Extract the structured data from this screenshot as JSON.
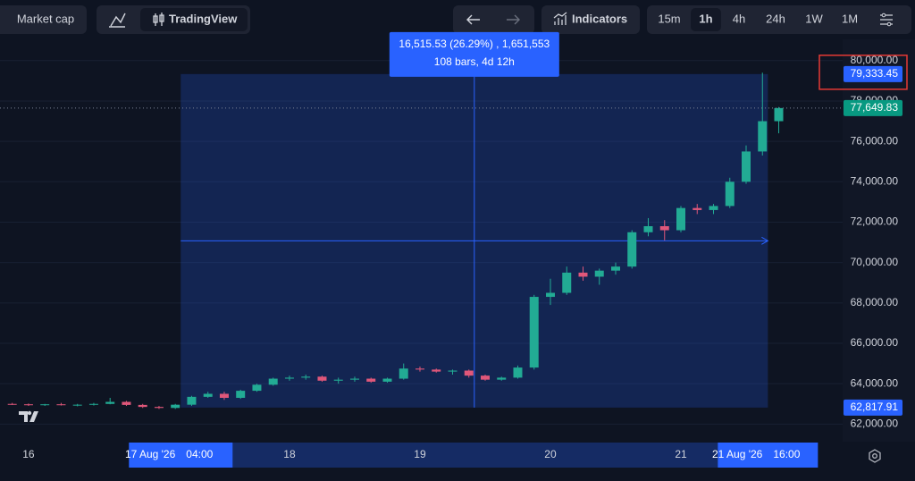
{
  "toolbar": {
    "market_cap": "Market cap",
    "tradingview": "TradingView",
    "indicators": "Indicators",
    "intervals": [
      "15m",
      "1h",
      "4h",
      "24h",
      "1W",
      "1M"
    ],
    "active_interval_index": 1
  },
  "chart_data": {
    "type": "candlestick",
    "x": [
      "2026-08-15 21:00",
      "2026-08-16 00:00",
      "2026-08-16 03:00",
      "2026-08-16 06:00",
      "2026-08-16 09:00",
      "2026-08-16 12:00",
      "2026-08-16 15:00",
      "2026-08-16 18:00",
      "2026-08-16 21:00",
      "2026-08-17 00:00",
      "2026-08-17 03:00",
      "2026-08-17 06:00",
      "2026-08-17 09:00",
      "2026-08-17 12:00",
      "2026-08-17 15:00",
      "2026-08-17 18:00",
      "2026-08-17 21:00",
      "2026-08-18 00:00",
      "2026-08-18 03:00",
      "2026-08-18 06:00",
      "2026-08-18 09:00",
      "2026-08-18 12:00",
      "2026-08-18 15:00",
      "2026-08-18 18:00",
      "2026-08-18 21:00",
      "2026-08-19 00:00",
      "2026-08-19 03:00",
      "2026-08-19 06:00",
      "2026-08-19 09:00",
      "2026-08-19 12:00",
      "2026-08-19 15:00",
      "2026-08-19 18:00",
      "2026-08-19 21:00",
      "2026-08-20 00:00",
      "2026-08-20 03:00",
      "2026-08-20 06:00",
      "2026-08-20 09:00",
      "2026-08-20 12:00",
      "2026-08-20 15:00",
      "2026-08-20 18:00",
      "2026-08-20 21:00",
      "2026-08-21 00:00",
      "2026-08-21 03:00",
      "2026-08-21 06:00",
      "2026-08-21 09:00",
      "2026-08-21 12:00",
      "2026-08-21 15:00",
      "2026-08-21 18:00"
    ],
    "open": [
      63000,
      62980,
      62950,
      62980,
      62940,
      62960,
      63000,
      63100,
      62950,
      62850,
      62800,
      62960,
      63350,
      63500,
      63300,
      63650,
      63950,
      64250,
      64300,
      64350,
      64150,
      64200,
      64250,
      64100,
      64250,
      64750,
      64700,
      64600,
      64650,
      64400,
      64200,
      64300,
      64800,
      68300,
      68500,
      69500,
      69300,
      69600,
      69800,
      71500,
      71800,
      71600,
      72700,
      72600,
      72800,
      74000,
      75500,
      77000
    ],
    "high": [
      63050,
      63020,
      63000,
      63050,
      63000,
      63050,
      63300,
      63150,
      63000,
      62900,
      63000,
      63400,
      63600,
      63600,
      63700,
      64000,
      64300,
      64400,
      64450,
      64400,
      64300,
      64350,
      64300,
      64300,
      65000,
      64850,
      64750,
      64700,
      64700,
      64450,
      64350,
      64900,
      68400,
      69200,
      69800,
      69800,
      69700,
      70000,
      71600,
      72200,
      72100,
      72800,
      72900,
      72900,
      74200,
      75800,
      79400,
      77700
    ],
    "low": [
      62950,
      62900,
      62900,
      62920,
      62880,
      62920,
      62980,
      62900,
      62800,
      62750,
      62750,
      62900,
      63300,
      63200,
      63250,
      63600,
      63900,
      64150,
      64200,
      64100,
      64000,
      64100,
      64050,
      64050,
      64200,
      64600,
      64550,
      64450,
      64300,
      64150,
      64150,
      64250,
      64700,
      67900,
      68400,
      69100,
      68900,
      69400,
      69700,
      71300,
      71100,
      71500,
      72400,
      72400,
      72700,
      73900,
      75300,
      76400
    ],
    "close": [
      62980,
      62950,
      62980,
      62940,
      62960,
      63000,
      63100,
      62950,
      62850,
      62800,
      62960,
      63350,
      63500,
      63300,
      63650,
      63950,
      64250,
      64300,
      64350,
      64150,
      64200,
      64250,
      64100,
      64250,
      64750,
      64700,
      64600,
      64650,
      64400,
      64200,
      64300,
      64800,
      68300,
      68500,
      69500,
      69300,
      69600,
      69800,
      71500,
      71800,
      71600,
      72700,
      72600,
      72800,
      74000,
      75500,
      77000,
      77650
    ],
    "up_color": "#22ab94",
    "down_color": "#e0577a",
    "xlim": [
      "2026-08-15 18:45",
      "2026-08-22 05:45"
    ],
    "xticks": [
      {
        "value": "2026-08-16 00:00",
        "label": "16"
      },
      {
        "value": "2026-08-18 00:00",
        "label": "18"
      },
      {
        "value": "2026-08-19 00:00",
        "label": "19"
      },
      {
        "value": "2026-08-20 00:00",
        "label": "20"
      },
      {
        "value": "2026-08-21 00:00",
        "label": "21"
      }
    ],
    "ylim": [
      61130,
      81053
    ],
    "yticks": [
      {
        "value": 62000,
        "label": "62,000.00"
      },
      {
        "value": 64000,
        "label": "64,000.00"
      },
      {
        "value": 66000,
        "label": "66,000.00"
      },
      {
        "value": 68000,
        "label": "68,000.00"
      },
      {
        "value": 70000,
        "label": "70,000.00"
      },
      {
        "value": 72000,
        "label": "72,000.00"
      },
      {
        "value": 74000,
        "label": "74,000.00"
      },
      {
        "value": 76000,
        "label": "76,000.00"
      },
      {
        "value": 78000,
        "label": "78,000.00"
      },
      {
        "value": 80000,
        "label": "80,000.00"
      }
    ],
    "grid": true,
    "last_price": {
      "value": 77649.83,
      "label": "77,649.83",
      "color": "#089981"
    },
    "measure": {
      "start": "2026-08-17 04:00",
      "end": "2026-08-21 16:00",
      "low": 62817.91,
      "high": 79333.45,
      "low_label": "62,817.91",
      "high_label": "79,333.45",
      "color": "#2962ff",
      "change_label": "16,515.53 (26.29%) , 1,651,553",
      "bars_label": "108 bars, 4d 12h",
      "start_date": "17 Aug '26",
      "start_time": "04:00",
      "end_date": "21 Aug '26",
      "end_time": "16:00"
    }
  }
}
